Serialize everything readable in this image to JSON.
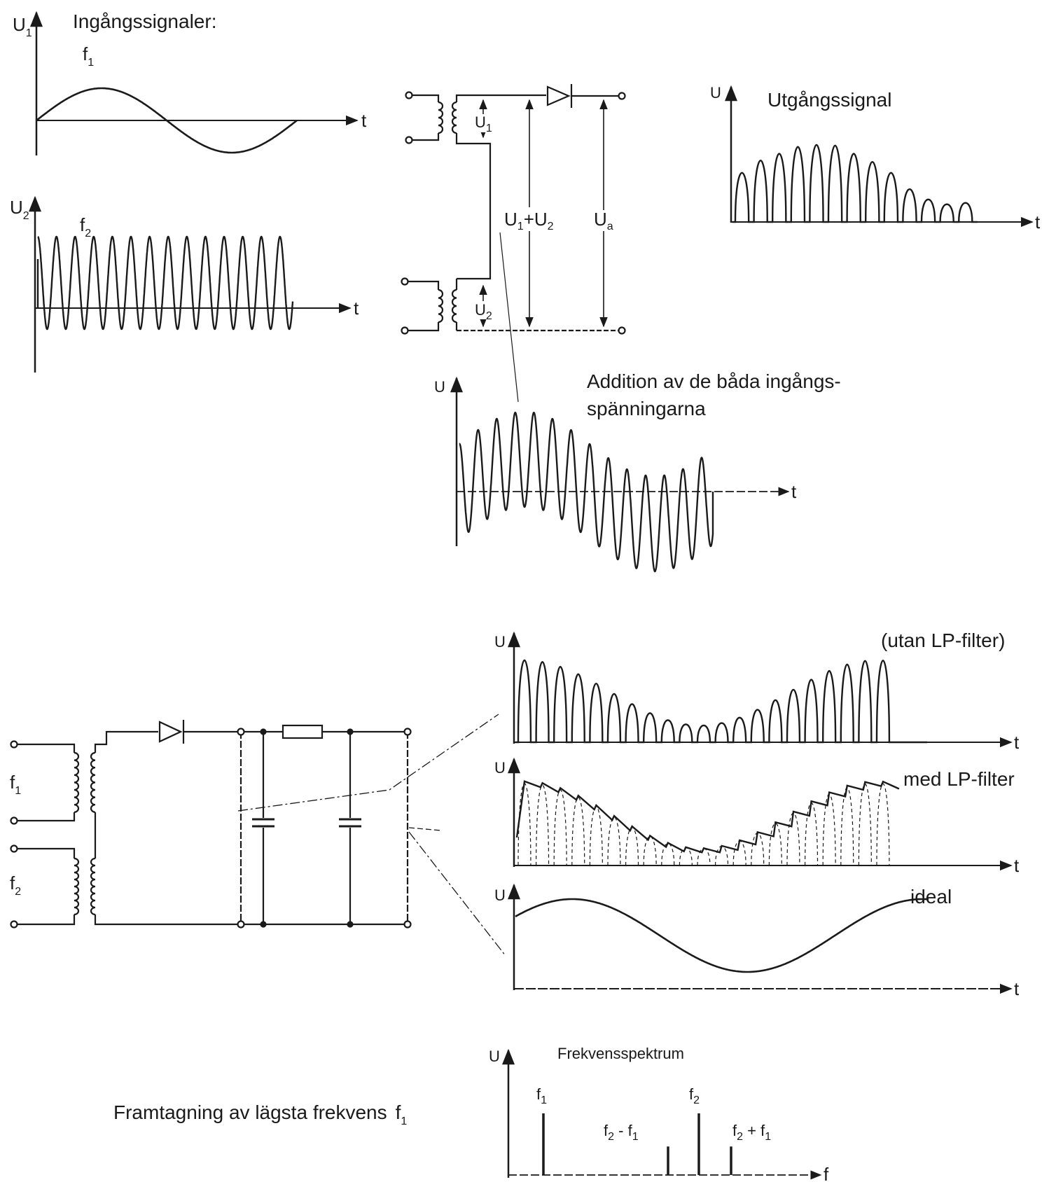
{
  "panels": {
    "u1": {
      "axis": "U",
      "axis_sub": "1",
      "title": "Ingångssignaler:",
      "freq": "f",
      "freq_sub": "1",
      "time": "t"
    },
    "u2": {
      "axis": "U",
      "axis_sub": "2",
      "freq": "f",
      "freq_sub": "2",
      "time": "t"
    },
    "output": {
      "axis": "U",
      "title": "Utgångssignal",
      "time": "t"
    },
    "addition": {
      "axis": "U",
      "title_line1": "Addition av de båda ingångs-",
      "title_line2": "spänningarna",
      "time": "t"
    },
    "no_filter": {
      "axis": "U",
      "title": "(utan LP-filter)",
      "time": "t"
    },
    "with_filter": {
      "axis": "U",
      "title": "med LP-filter",
      "time": "t"
    },
    "ideal": {
      "axis": "U",
      "title": "ideal",
      "time": "t"
    },
    "spectrum": {
      "axis": "U",
      "title": "Frekvensspektrum",
      "axis_f": "f"
    }
  },
  "circuit_top": {
    "u1": "U",
    "u1_sub": "1",
    "u2": "U",
    "u2_sub": "2",
    "sum_a": "U",
    "sum_a_sub": "1",
    "sum_plus": "+",
    "sum_b": "U",
    "sum_b_sub": "2",
    "ua": "U",
    "ua_sub": "a"
  },
  "circuit_bottom": {
    "f1": "f",
    "f1_sub": "1",
    "f2": "f",
    "f2_sub": "2"
  },
  "spectrum_lines": [
    {
      "label": "f",
      "sub": "1",
      "suffix": "",
      "relative_height": 0.8
    },
    {
      "label": "f",
      "sub": "2",
      "suffix": " - f",
      "sub2": "1",
      "relative_height": 0.37
    },
    {
      "label": "f",
      "sub": "2",
      "suffix": "",
      "relative_height": 0.8
    },
    {
      "label": "f",
      "sub": "2",
      "suffix": " + f",
      "sub2": "1",
      "relative_height": 0.37
    }
  ],
  "caption": {
    "text": "Framtagning av lägsta frekvens",
    "freq": "f",
    "freq_sub": "1"
  },
  "colors": {
    "ink": "#1a1a1a",
    "paper": "#ffffff"
  }
}
